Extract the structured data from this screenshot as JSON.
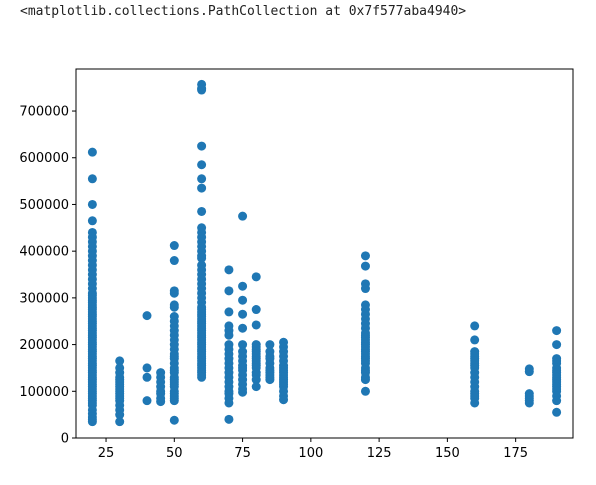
{
  "output": {
    "repr_text": "<matplotlib.collections.PathCollection at 0x7f577aba4940>"
  },
  "chart_data": {
    "type": "scatter",
    "title": "",
    "xlabel": "",
    "ylabel": "",
    "xlim": [
      14,
      196
    ],
    "ylim": [
      0,
      790000
    ],
    "grid": false,
    "marker_color": "#1f77b4",
    "x_ticks": [
      25,
      50,
      75,
      100,
      125,
      150,
      175
    ],
    "x_tick_labels": [
      "25",
      "50",
      "75",
      "100",
      "125",
      "150",
      "175"
    ],
    "y_ticks": [
      0,
      100000,
      200000,
      300000,
      400000,
      500000,
      600000,
      700000
    ],
    "y_tick_labels": [
      "0",
      "100000",
      "200000",
      "300000",
      "400000",
      "500000",
      "600000",
      "700000"
    ],
    "series": [
      {
        "x": [
          20,
          20,
          20,
          20,
          20,
          20,
          20,
          20,
          20,
          20,
          20,
          20,
          20,
          20,
          20,
          20,
          20,
          20,
          20,
          20,
          20,
          20,
          20,
          20,
          20,
          20,
          20,
          20,
          20,
          20,
          20,
          20,
          20,
          20,
          20,
          20,
          20,
          20,
          20,
          20,
          20,
          20,
          20,
          20,
          20,
          20,
          20,
          20,
          20,
          20,
          20,
          20,
          20,
          20,
          20,
          20,
          20,
          20,
          20,
          20,
          20,
          20,
          20,
          20,
          20,
          20,
          20,
          20,
          20,
          20,
          20,
          30,
          30,
          30,
          30,
          30,
          30,
          30,
          30,
          30,
          30,
          30,
          30,
          30,
          30,
          30,
          30,
          30,
          30,
          40,
          40,
          40,
          40,
          45,
          45,
          45,
          45,
          45,
          45,
          45,
          45,
          50,
          50,
          50,
          50,
          50,
          50,
          50,
          50,
          50,
          50,
          50,
          50,
          50,
          50,
          50,
          50,
          50,
          50,
          50,
          50,
          50,
          50,
          50,
          50,
          50,
          50,
          50,
          50,
          50,
          50,
          50,
          50,
          60,
          60,
          60,
          60,
          60,
          60,
          60,
          60,
          60,
          60,
          60,
          60,
          60,
          60,
          60,
          60,
          60,
          60,
          60,
          60,
          60,
          60,
          60,
          60,
          60,
          60,
          60,
          60,
          60,
          60,
          60,
          60,
          60,
          60,
          60,
          60,
          60,
          60,
          60,
          60,
          60,
          60,
          60,
          60,
          60,
          60,
          60,
          60,
          60,
          60,
          60,
          60,
          60,
          60,
          60,
          60,
          70,
          70,
          70,
          70,
          70,
          70,
          70,
          70,
          70,
          70,
          70,
          70,
          70,
          70,
          70,
          70,
          70,
          70,
          70,
          70,
          70,
          75,
          75,
          75,
          75,
          75,
          75,
          75,
          75,
          75,
          75,
          75,
          75,
          75,
          75,
          75,
          75,
          75,
          80,
          80,
          80,
          80,
          80,
          80,
          80,
          80,
          80,
          80,
          80,
          80,
          80,
          80,
          80,
          80,
          80,
          80,
          85,
          85,
          85,
          85,
          85,
          85,
          85,
          85,
          85,
          85,
          85,
          90,
          90,
          90,
          90,
          90,
          90,
          90,
          90,
          90,
          90,
          90,
          90,
          90,
          90,
          90,
          90,
          90,
          90,
          120,
          120,
          120,
          120,
          120,
          120,
          120,
          120,
          120,
          120,
          120,
          120,
          120,
          120,
          120,
          120,
          120,
          120,
          120,
          120,
          120,
          120,
          120,
          120,
          120,
          120,
          120,
          120,
          120,
          120,
          160,
          160,
          160,
          160,
          160,
          160,
          160,
          160,
          160,
          160,
          160,
          160,
          160,
          160,
          160,
          160,
          160,
          160,
          160,
          180,
          180,
          180,
          180,
          180,
          180,
          180,
          190,
          190,
          190,
          190,
          190,
          190,
          190,
          190,
          190,
          190,
          190,
          190,
          190,
          190,
          190,
          190,
          190,
          190,
          190
        ],
        "y": [
          612000,
          555000,
          500000,
          465000,
          440000,
          430000,
          420000,
          410000,
          400000,
          390000,
          380000,
          370000,
          360000,
          350000,
          340000,
          330000,
          320000,
          310000,
          305000,
          300000,
          295000,
          290000,
          285000,
          280000,
          275000,
          270000,
          265000,
          260000,
          255000,
          250000,
          245000,
          240000,
          235000,
          230000,
          225000,
          220000,
          215000,
          210000,
          205000,
          200000,
          195000,
          190000,
          185000,
          180000,
          175000,
          170000,
          165000,
          160000,
          155000,
          150000,
          145000,
          140000,
          135000,
          130000,
          125000,
          120000,
          115000,
          110000,
          105000,
          100000,
          95000,
          90000,
          85000,
          80000,
          75000,
          70000,
          60000,
          52000,
          45000,
          40000,
          35000,
          165000,
          150000,
          140000,
          130000,
          125000,
          120000,
          115000,
          110000,
          105000,
          100000,
          95000,
          90000,
          85000,
          80000,
          70000,
          60000,
          50000,
          35000,
          262000,
          150000,
          130000,
          80000,
          140000,
          130000,
          120000,
          110000,
          100000,
          95000,
          85000,
          78000,
          412000,
          380000,
          315000,
          310000,
          285000,
          280000,
          260000,
          250000,
          240000,
          230000,
          220000,
          210000,
          200000,
          190000,
          180000,
          175000,
          170000,
          160000,
          150000,
          145000,
          140000,
          130000,
          125000,
          120000,
          115000,
          110000,
          100000,
          95000,
          90000,
          85000,
          80000,
          38000,
          757000,
          748000,
          745000,
          625000,
          585000,
          555000,
          535000,
          485000,
          450000,
          440000,
          430000,
          420000,
          410000,
          400000,
          390000,
          385000,
          370000,
          360000,
          350000,
          340000,
          330000,
          320000,
          310000,
          300000,
          290000,
          280000,
          275000,
          270000,
          265000,
          260000,
          255000,
          250000,
          245000,
          240000,
          235000,
          230000,
          225000,
          220000,
          215000,
          210000,
          205000,
          200000,
          195000,
          190000,
          185000,
          180000,
          175000,
          170000,
          165000,
          160000,
          155000,
          150000,
          145000,
          140000,
          135000,
          130000,
          360000,
          315000,
          270000,
          240000,
          230000,
          220000,
          200000,
          190000,
          180000,
          170000,
          160000,
          150000,
          140000,
          130000,
          120000,
          110000,
          100000,
          95000,
          85000,
          75000,
          40000,
          475000,
          325000,
          295000,
          265000,
          235000,
          200000,
          185000,
          175000,
          165000,
          155000,
          150000,
          145000,
          135000,
          125000,
          115000,
          105000,
          98000,
          345000,
          275000,
          242000,
          200000,
          195000,
          190000,
          185000,
          180000,
          175000,
          170000,
          165000,
          160000,
          155000,
          150000,
          140000,
          135000,
          125000,
          110000,
          200000,
          185000,
          175000,
          170000,
          160000,
          150000,
          145000,
          140000,
          135000,
          130000,
          125000,
          205000,
          195000,
          185000,
          175000,
          165000,
          155000,
          150000,
          145000,
          140000,
          135000,
          130000,
          125000,
          120000,
          115000,
          110000,
          100000,
          90000,
          82000,
          390000,
          368000,
          330000,
          320000,
          285000,
          275000,
          265000,
          255000,
          245000,
          235000,
          225000,
          220000,
          215000,
          210000,
          205000,
          200000,
          195000,
          190000,
          185000,
          180000,
          175000,
          170000,
          165000,
          160000,
          150000,
          145000,
          140000,
          130000,
          125000,
          100000,
          240000,
          210000,
          185000,
          180000,
          175000,
          170000,
          165000,
          160000,
          155000,
          150000,
          140000,
          130000,
          120000,
          110000,
          100000,
          95000,
          90000,
          85000,
          75000,
          148000,
          142000,
          95000,
          90000,
          85000,
          80000,
          75000,
          230000,
          200000,
          170000,
          165000,
          160000,
          150000,
          145000,
          140000,
          135000,
          130000,
          125000,
          120000,
          115000,
          110000,
          105000,
          100000,
          90000,
          80000,
          55000
        ]
      }
    ]
  }
}
